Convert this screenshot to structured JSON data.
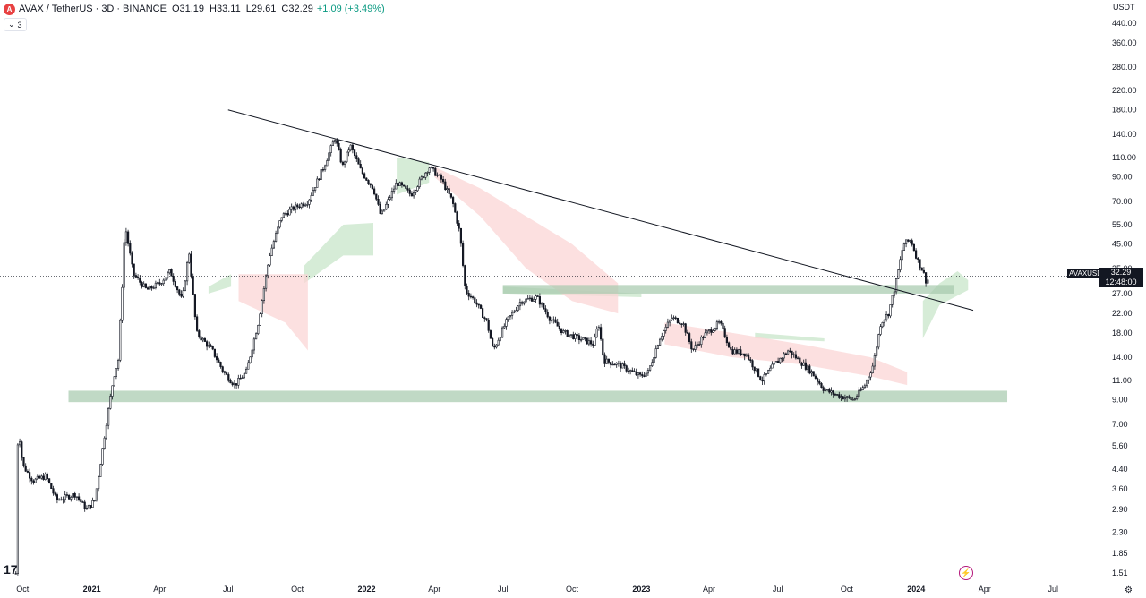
{
  "header": {
    "symbol": "AVAX",
    "quote": "TetherUS",
    "interval": "3D",
    "exchange": "BINANCE",
    "open_label": "O",
    "open": "31.19",
    "high_label": "H",
    "high": "33.11",
    "low_label": "L",
    "low": "29.61",
    "close_label": "C",
    "close": "32.29",
    "change": "+1.09 (+3.49%)",
    "sep": "/",
    "dot": "·"
  },
  "indicator_count": "3",
  "currency": "USDT",
  "price_tag": {
    "symbol": "AVAXUSDT",
    "price": "32.29",
    "countdown": "12:48:00"
  },
  "tv_logo": "17",
  "colors": {
    "support_zone": "#a5c9ad",
    "cloud_green": "#c8e6c9",
    "cloud_red": "#fbd5d5",
    "candles": "#131722"
  },
  "chart_data": {
    "type": "candlestick",
    "title": "AVAX / TetherUS · 3D · BINANCE",
    "ylabel": "USDT",
    "y_scale": "log",
    "ylim": [
      1.4,
      520
    ],
    "y_ticks": [
      "440.00",
      "360.00",
      "280.00",
      "220.00",
      "180.00",
      "140.00",
      "110.00",
      "90.00",
      "70.00",
      "55.00",
      "45.00",
      "35.00",
      "27.00",
      "22.00",
      "18.00",
      "14.00",
      "11.00",
      "9.00",
      "7.00",
      "5.60",
      "4.40",
      "3.60",
      "2.90",
      "2.30",
      "1.85",
      "1.51"
    ],
    "x_ticks": [
      "Oct",
      "2021",
      "Apr",
      "Jul",
      "Oct",
      "2022",
      "Apr",
      "Jul",
      "Oct",
      "2023",
      "Apr",
      "Jul",
      "Oct",
      "2024",
      "Apr",
      "Jul"
    ],
    "x_ticks_bold": [
      "2021",
      "2022",
      "2023",
      "2024"
    ],
    "price_path": [
      [
        "2020-09-22",
        1.5
      ],
      [
        "2020-09-25",
        7.0
      ],
      [
        "2020-10-01",
        4.6
      ],
      [
        "2020-10-15",
        3.9
      ],
      [
        "2020-11-01",
        4.1
      ],
      [
        "2020-11-15",
        3.2
      ],
      [
        "2020-12-10",
        3.4
      ],
      [
        "2020-12-25",
        2.9
      ],
      [
        "2021-01-05",
        3.2
      ],
      [
        "2021-01-20",
        7.0
      ],
      [
        "2021-01-30",
        11.5
      ],
      [
        "2021-02-05",
        13.5
      ],
      [
        "2021-02-10",
        28.0
      ],
      [
        "2021-02-14",
        55.0
      ],
      [
        "2021-02-25",
        33.0
      ],
      [
        "2021-03-15",
        28.0
      ],
      [
        "2021-04-01",
        30.0
      ],
      [
        "2021-04-15",
        34.0
      ],
      [
        "2021-05-01",
        25.0
      ],
      [
        "2021-05-10",
        42.0
      ],
      [
        "2021-05-20",
        18.0
      ],
      [
        "2021-06-10",
        15.0
      ],
      [
        "2021-06-25",
        12.0
      ],
      [
        "2021-07-10",
        10.5
      ],
      [
        "2021-07-25",
        12.0
      ],
      [
        "2021-08-10",
        20.0
      ],
      [
        "2021-08-25",
        40.0
      ],
      [
        "2021-09-10",
        60.0
      ],
      [
        "2021-09-25",
        65.0
      ],
      [
        "2021-10-15",
        70.0
      ],
      [
        "2021-11-05",
        100.0
      ],
      [
        "2021-11-20",
        135.0
      ],
      [
        "2021-11-30",
        100.0
      ],
      [
        "2021-12-10",
        125.0
      ],
      [
        "2021-12-25",
        95.0
      ],
      [
        "2022-01-10",
        80.0
      ],
      [
        "2022-01-20",
        60.0
      ],
      [
        "2022-02-10",
        85.0
      ],
      [
        "2022-03-01",
        75.0
      ],
      [
        "2022-03-25",
        100.0
      ],
      [
        "2022-04-10",
        88.0
      ],
      [
        "2022-04-25",
        70.0
      ],
      [
        "2022-05-05",
        50.0
      ],
      [
        "2022-05-12",
        28.0
      ],
      [
        "2022-05-25",
        25.0
      ],
      [
        "2022-06-10",
        20.0
      ],
      [
        "2022-06-18",
        15.0
      ],
      [
        "2022-07-05",
        20.0
      ],
      [
        "2022-07-25",
        25.0
      ],
      [
        "2022-08-15",
        26.0
      ],
      [
        "2022-09-01",
        21.0
      ],
      [
        "2022-09-20",
        18.0
      ],
      [
        "2022-10-10",
        17.0
      ],
      [
        "2022-10-30",
        16.0
      ],
      [
        "2022-11-05",
        20.0
      ],
      [
        "2022-11-12",
        13.5
      ],
      [
        "2022-12-01",
        13.0
      ],
      [
        "2022-12-30",
        11.5
      ],
      [
        "2023-01-10",
        12.0
      ],
      [
        "2023-01-25",
        17.0
      ],
      [
        "2023-02-10",
        21.0
      ],
      [
        "2023-02-25",
        20.0
      ],
      [
        "2023-03-10",
        15.0
      ],
      [
        "2023-03-25",
        17.5
      ],
      [
        "2023-04-15",
        20.0
      ],
      [
        "2023-04-30",
        15.0
      ],
      [
        "2023-05-20",
        14.5
      ],
      [
        "2023-06-10",
        11.0
      ],
      [
        "2023-06-25",
        12.8
      ],
      [
        "2023-07-15",
        15.0
      ],
      [
        "2023-07-25",
        14.0
      ],
      [
        "2023-08-15",
        12.0
      ],
      [
        "2023-09-01",
        10.0
      ],
      [
        "2023-09-20",
        9.4
      ],
      [
        "2023-10-10",
        9.0
      ],
      [
        "2023-10-25",
        10.5
      ],
      [
        "2023-11-05",
        13.0
      ],
      [
        "2023-11-15",
        20.0
      ],
      [
        "2023-11-25",
        22.0
      ],
      [
        "2023-12-05",
        30.0
      ],
      [
        "2023-12-15",
        45.0
      ],
      [
        "2023-12-25",
        47.0
      ],
      [
        "2024-01-03",
        38.0
      ],
      [
        "2024-01-10",
        34.0
      ],
      [
        "2024-01-15",
        30.0
      ],
      [
        "2024-01-18",
        32.29
      ]
    ],
    "annotations": {
      "trendline": [
        [
          "2021-07-01",
          180.0
        ],
        [
          "2024-05-01",
          22.5
        ]
      ],
      "support_zone": {
        "x": [
          "2020-12-01",
          "2024-05-01"
        ],
        "y": [
          8.8,
          9.9
        ]
      },
      "resistance_zone": {
        "x": [
          "2022-07-01",
          "2024-02-20"
        ],
        "y": [
          27.0,
          29.5
        ]
      },
      "current_price_line": 32.29
    },
    "cloud_green": [
      [
        [
          "2021-06-05",
          29
        ],
        [
          "2021-07-05",
          33
        ],
        [
          "2021-07-05",
          29
        ],
        [
          "2021-06-05",
          27
        ]
      ],
      [
        [
          "2021-10-10",
          36
        ],
        [
          "2021-12-01",
          55
        ],
        [
          "2022-01-10",
          56
        ],
        [
          "2022-01-10",
          40
        ],
        [
          "2021-12-01",
          40
        ],
        [
          "2021-10-10",
          30
        ]
      ],
      [
        [
          "2022-02-10",
          110
        ],
        [
          "2022-03-25",
          105
        ],
        [
          "2022-03-25",
          85
        ],
        [
          "2022-02-10",
          75
        ]
      ],
      [
        [
          "2022-07-01",
          29
        ],
        [
          "2023-01-01",
          27
        ],
        [
          "2023-01-01",
          26
        ],
        [
          "2022-07-01",
          27
        ]
      ],
      [
        [
          "2023-06-01",
          18
        ],
        [
          "2023-09-01",
          17
        ],
        [
          "2023-09-01",
          16.5
        ],
        [
          "2023-06-01",
          17
        ]
      ],
      [
        [
          "2024-01-10",
          25
        ],
        [
          "2024-02-01",
          30
        ],
        [
          "2024-02-25",
          34
        ],
        [
          "2024-03-10",
          31
        ],
        [
          "2024-03-10",
          28
        ],
        [
          "2024-02-01",
          24
        ],
        [
          "2024-01-10",
          17
        ]
      ]
    ],
    "cloud_red": [
      [
        [
          "2021-07-15",
          33
        ],
        [
          "2021-09-15",
          33
        ],
        [
          "2021-10-15",
          33
        ],
        [
          "2021-10-15",
          15
        ],
        [
          "2021-09-15",
          20
        ],
        [
          "2021-07-15",
          25
        ]
      ],
      [
        [
          "2022-04-01",
          100
        ],
        [
          "2022-06-01",
          80
        ],
        [
          "2022-08-01",
          60
        ],
        [
          "2022-10-01",
          45
        ],
        [
          "2022-12-01",
          30
        ],
        [
          "2022-12-01",
          22
        ],
        [
          "2022-10-01",
          25
        ],
        [
          "2022-08-01",
          35
        ],
        [
          "2022-06-01",
          60
        ],
        [
          "2022-04-01",
          90
        ]
      ],
      [
        [
          "2023-02-01",
          20
        ],
        [
          "2023-05-01",
          18
        ],
        [
          "2023-08-01",
          16
        ],
        [
          "2023-11-01",
          14
        ],
        [
          "2023-12-20",
          12
        ],
        [
          "2023-12-20",
          10.5
        ],
        [
          "2023-11-01",
          11.5
        ],
        [
          "2023-08-01",
          13
        ],
        [
          "2023-05-01",
          14
        ],
        [
          "2023-02-01",
          16
        ]
      ]
    ]
  }
}
